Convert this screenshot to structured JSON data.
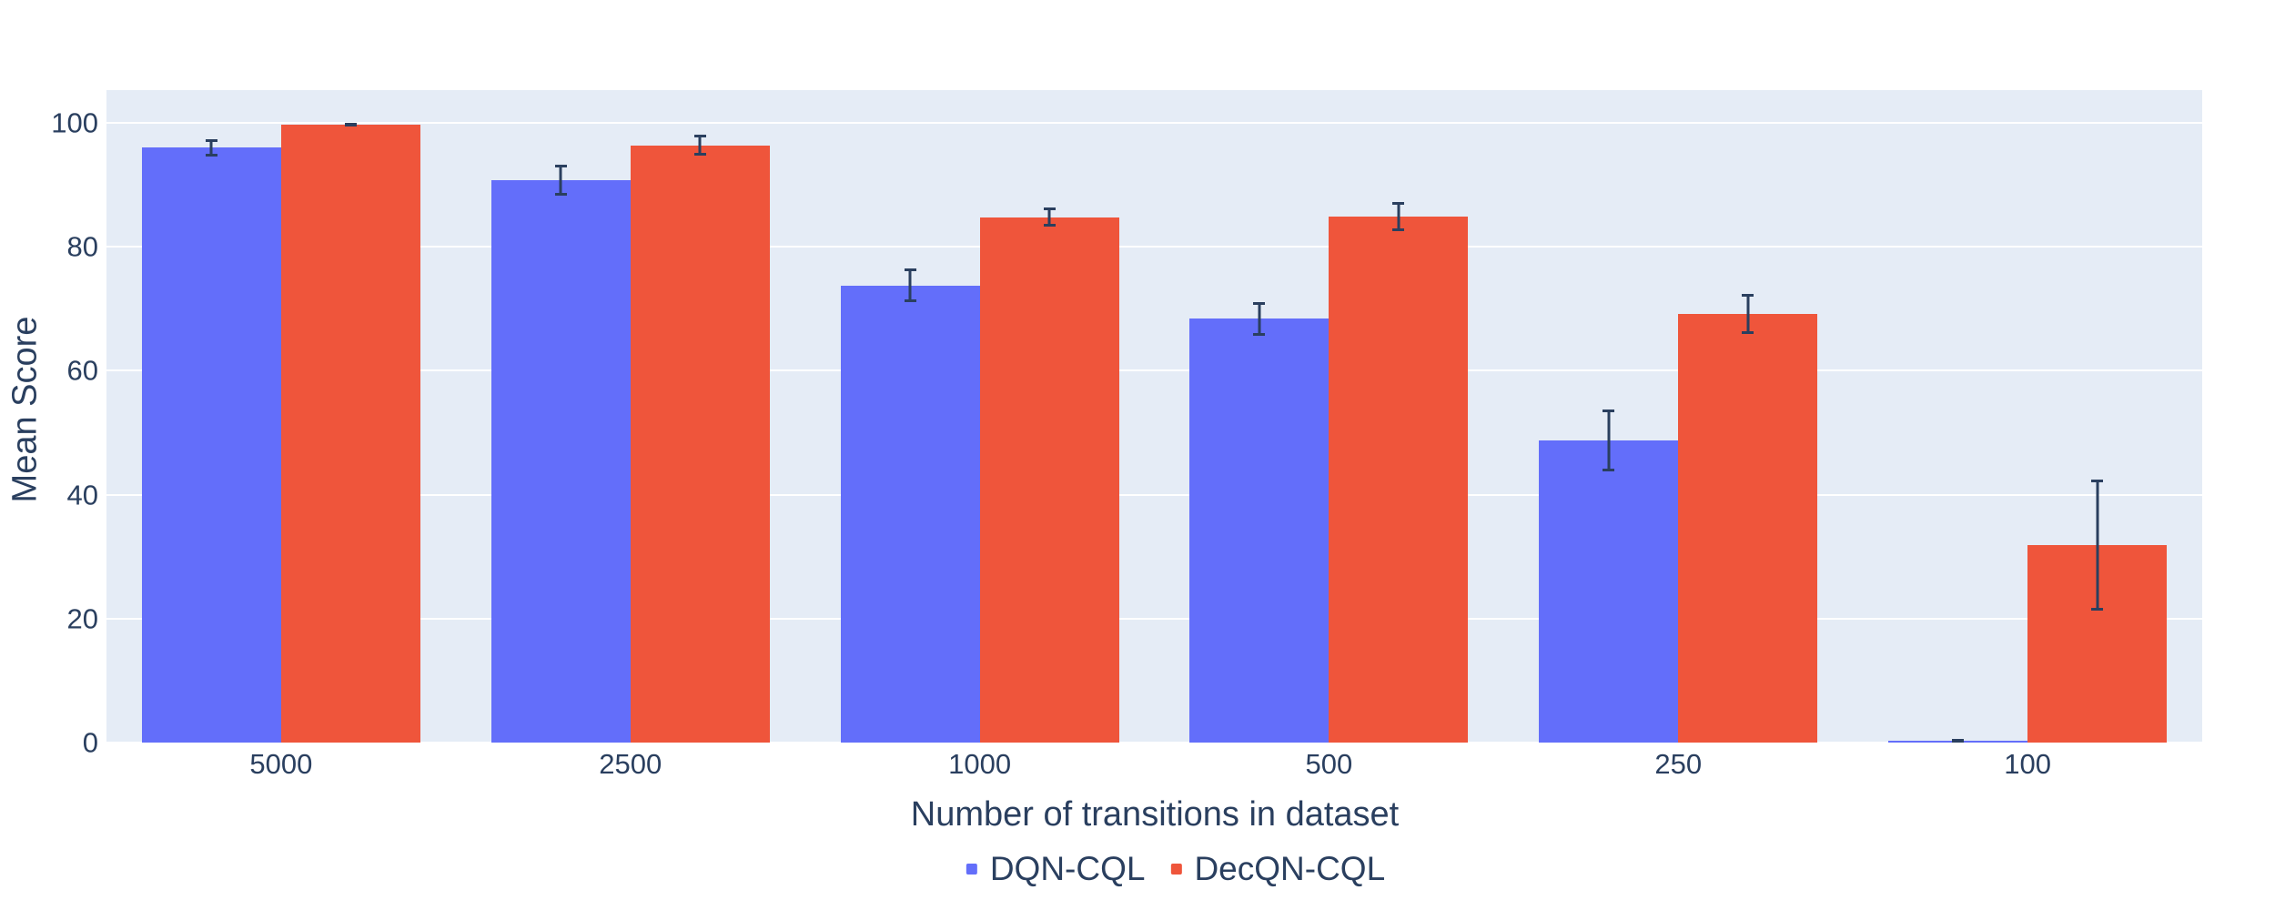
{
  "chart_data": {
    "type": "bar",
    "title": "",
    "xlabel": "Number of transitions in dataset",
    "ylabel": "Mean Score",
    "categories": [
      "5000",
      "2500",
      "1000",
      "500",
      "250",
      "100"
    ],
    "series": [
      {
        "name": "DQN-CQL",
        "color": "#636EFA",
        "values": [
          96.0,
          90.8,
          73.8,
          68.4,
          48.7,
          0.3
        ],
        "errors": [
          1.4,
          2.5,
          2.7,
          2.7,
          5.0,
          0.3
        ]
      },
      {
        "name": "DecQN-CQL",
        "color": "#EF553B",
        "values": [
          99.7,
          96.4,
          84.8,
          84.9,
          69.2,
          31.9
        ],
        "errors": [
          0.3,
          1.7,
          1.6,
          2.4,
          3.2,
          10.6
        ]
      }
    ],
    "yticks": [
      0,
      20,
      40,
      60,
      80,
      100
    ],
    "ylim": [
      0,
      105.3
    ],
    "grid": true,
    "legend_position": "bottom-center",
    "colors": {
      "plot_bg": "#E5ECF6",
      "grid": "#FFFFFF",
      "font": "#2a3f5f",
      "error_bar": "#2a3f5f"
    }
  }
}
